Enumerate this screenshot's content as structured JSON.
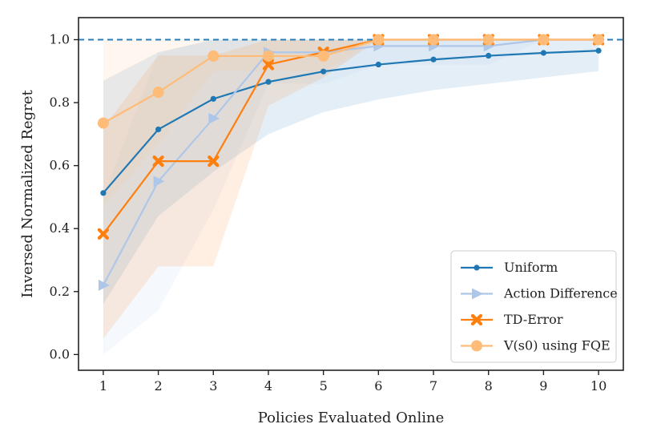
{
  "chart_data": {
    "type": "line",
    "xlabel": "Policies Evaluated Online",
    "ylabel": "Inversed Normalized Regret",
    "x": [
      1,
      2,
      3,
      4,
      5,
      6,
      7,
      8,
      9,
      10
    ],
    "xlim": [
      0.55,
      10.45
    ],
    "ylim": [
      -0.05,
      1.07
    ],
    "xticks": [
      "1",
      "2",
      "3",
      "4",
      "5",
      "6",
      "7",
      "8",
      "9",
      "10"
    ],
    "yticks": [
      "0.0",
      "0.2",
      "0.4",
      "0.6",
      "0.8",
      "1.0"
    ],
    "reference_line": {
      "y": 1.0,
      "style": "dashed",
      "color": "#2c7bb6"
    },
    "grid": false,
    "legend_position": "bottom-right",
    "series": [
      {
        "name": "Uniform",
        "color": "#1f77b4",
        "marker": "circle-small",
        "values": [
          0.513,
          0.715,
          0.812,
          0.866,
          0.899,
          0.921,
          0.937,
          0.949,
          0.958,
          0.965
        ],
        "band_lower": [
          0.16,
          0.44,
          0.58,
          0.7,
          0.77,
          0.81,
          0.84,
          0.86,
          0.88,
          0.9
        ],
        "band_upper": [
          0.87,
          0.96,
          1.0,
          1.0,
          1.0,
          1.0,
          1.0,
          1.0,
          1.0,
          1.0
        ]
      },
      {
        "name": "Action Difference",
        "color": "#aec7e8",
        "marker": "triangle-right",
        "values": [
          0.22,
          0.55,
          0.75,
          0.96,
          0.96,
          0.98,
          0.98,
          0.98,
          1.0,
          1.0
        ],
        "band_lower": [
          0.0,
          0.14,
          0.46,
          0.86,
          0.86,
          0.92,
          0.92,
          0.92,
          1.0,
          1.0
        ],
        "band_upper": [
          0.5,
          0.96,
          1.0,
          1.0,
          1.0,
          1.0,
          1.0,
          1.0,
          1.0,
          1.0
        ]
      },
      {
        "name": "TD-Error",
        "color": "#ff7f0e",
        "marker": "x-bold",
        "values": [
          0.383,
          0.614,
          0.614,
          0.921,
          0.96,
          1.0,
          1.0,
          1.0,
          1.0,
          1.0
        ],
        "band_lower": [
          0.05,
          0.28,
          0.28,
          0.79,
          0.88,
          1.0,
          1.0,
          1.0,
          1.0,
          1.0
        ],
        "band_upper": [
          0.72,
          0.95,
          0.95,
          1.0,
          1.0,
          1.0,
          1.0,
          1.0,
          1.0,
          1.0
        ]
      },
      {
        "name": "V(s0) using FQE",
        "color": "#ffbb78",
        "marker": "circle-large",
        "values": [
          0.735,
          0.833,
          0.948,
          0.948,
          0.948,
          1.0,
          1.0,
          1.0,
          1.0,
          1.0
        ],
        "band_lower": [
          0.47,
          0.67,
          0.9,
          0.9,
          0.9,
          1.0,
          1.0,
          1.0,
          1.0,
          1.0
        ],
        "band_upper": [
          1.0,
          1.0,
          1.0,
          1.0,
          1.0,
          1.0,
          1.0,
          1.0,
          1.0,
          1.0
        ]
      }
    ]
  }
}
